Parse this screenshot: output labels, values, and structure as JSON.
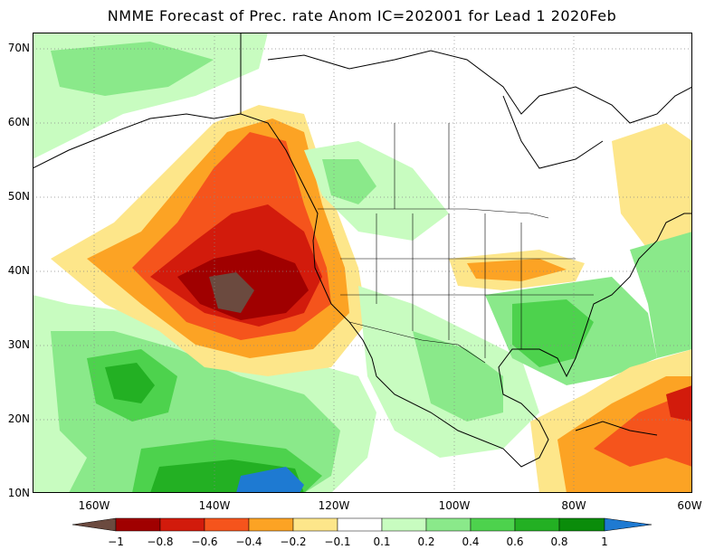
{
  "title": "NMME Forecast of Prec. rate Anom IC=202001 for Lead 1 2020Feb",
  "map": {
    "lon_range": [
      -170,
      -60
    ],
    "lat_range": [
      10,
      70
    ],
    "lat_ticks": [
      "70N",
      "60N",
      "50N",
      "40N",
      "30N",
      "20N",
      "10N"
    ],
    "lon_ticks": [
      "160W",
      "140W",
      "120W",
      "100W",
      "80W",
      "60W"
    ],
    "colors": {
      "le_-1": "#6b4a3f",
      "-1_-0.8": "#a00000",
      "-0.8_-0.6": "#d21b0c",
      "-0.6_-0.4": "#f5541c",
      "-0.4_-0.2": "#fca324",
      "-0.2_-0.1": "#fde68a",
      "0.1_0.2": "#c8fcc0",
      "0.2_0.4": "#8ae98a",
      "0.4_0.6": "#4dd24d",
      "0.6_0.8": "#23b023",
      "0.8_1": "#0a8c0a",
      "ge_1": "#1e7ad2"
    }
  },
  "colorbar": {
    "labels": [
      "−1",
      "−0.8",
      "−0.6",
      "−0.4",
      "−0.2",
      "−0.1",
      "0.1",
      "0.2",
      "0.4",
      "0.6",
      "0.8",
      "1"
    ]
  }
}
